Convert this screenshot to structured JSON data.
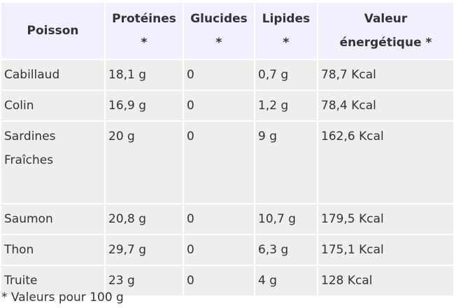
{
  "table": {
    "headers": [
      {
        "line1": "Poisson",
        "line2": ""
      },
      {
        "line1": "Protéines",
        "line2": "*"
      },
      {
        "line1": "Glucides",
        "line2": "*"
      },
      {
        "line1": "Lipides",
        "line2": "*"
      },
      {
        "line1": "Valeur",
        "line2": "énergétique *"
      }
    ],
    "rows": [
      [
        "Cabillaud",
        "18,1 g",
        "0",
        "0,7 g",
        "78,7 Kcal"
      ],
      [
        "Colin",
        "16,9 g",
        "0",
        "1,2 g",
        "78,4 Kcal"
      ],
      [
        "Sardines Fraîches",
        "20 g",
        "0",
        "9 g",
        "162,6 Kcal"
      ],
      [
        "Saumon",
        "20,8 g",
        "0",
        "10,7 g",
        "179,5 Kcal"
      ],
      [
        "Thon",
        "29,7 g",
        "0",
        "6,3 g",
        "175,1 Kcal"
      ],
      [
        "Truite",
        "23 g",
        "0",
        "4 g",
        "128 Kcal"
      ]
    ]
  },
  "footnote": "* Valeurs pour 100 g"
}
